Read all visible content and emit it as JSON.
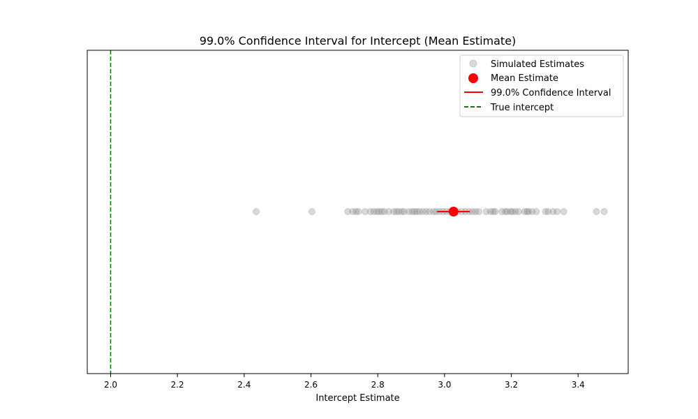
{
  "chart_data": {
    "type": "scatter",
    "title": "99.0% Confidence Interval for Intercept (Mean Estimate)",
    "xlabel": "Intercept Estimate",
    "ylabel": "",
    "xlim": [
      1.93,
      3.55
    ],
    "x_ticks": [
      2.0,
      2.2,
      2.4,
      2.6,
      2.8,
      3.0,
      3.2,
      3.4
    ],
    "x_tick_labels": [
      "2.0",
      "2.2",
      "2.4",
      "2.6",
      "2.8",
      "3.0",
      "3.2",
      "3.4"
    ],
    "y_ticks_visible": false,
    "grid": false,
    "legend_position": "top-right",
    "series": [
      {
        "name": "Simulated Estimates",
        "kind": "scatter",
        "color": "#808080",
        "opacity": 0.3,
        "y": 0,
        "x": [
          2.436,
          2.603,
          2.71,
          2.725,
          2.735,
          2.742,
          2.762,
          2.778,
          2.788,
          2.797,
          2.804,
          2.812,
          2.82,
          2.833,
          2.848,
          2.856,
          2.863,
          2.872,
          2.879,
          2.893,
          2.903,
          2.91,
          2.917,
          2.925,
          2.935,
          2.945,
          2.955,
          2.967,
          2.975,
          2.985,
          2.995,
          3.005,
          3.015,
          3.028,
          3.04,
          3.052,
          3.062,
          3.073,
          3.083,
          3.093,
          3.103,
          3.125,
          3.138,
          3.146,
          3.152,
          3.172,
          3.182,
          3.188,
          3.198,
          3.203,
          3.212,
          3.222,
          3.24,
          3.247,
          3.252,
          3.262,
          3.275,
          3.302,
          3.31,
          3.325,
          3.337,
          3.357,
          3.455,
          3.478
        ]
      },
      {
        "name": "Mean Estimate",
        "kind": "point",
        "color": "#ff0000",
        "x": 3.027,
        "y": 0
      },
      {
        "name": "99.0% Confidence Interval",
        "kind": "interval",
        "color": "#ff0000",
        "x": [
          2.978,
          3.076
        ],
        "y": 0
      },
      {
        "name": "True intercept",
        "kind": "vline",
        "color": "#008000",
        "linestyle": "dashed",
        "x": 2.0
      }
    ]
  }
}
